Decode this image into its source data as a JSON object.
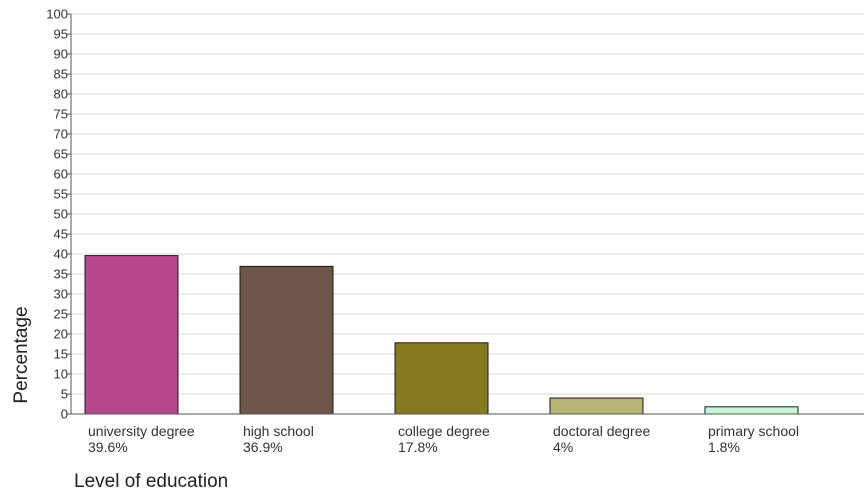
{
  "chart_data": {
    "type": "bar",
    "title": "",
    "xlabel": "Level of education",
    "ylabel": "Percentage",
    "ylim": [
      0,
      100
    ],
    "ytick_step": 5,
    "grid": true,
    "categories": [
      "university degree",
      "high school",
      "college degree",
      "doctoral degree",
      "primary school"
    ],
    "values": [
      39.6,
      36.9,
      17.8,
      4,
      1.8
    ],
    "value_labels": [
      "39.6%",
      "36.9%",
      "17.8%",
      "4%",
      "1.8%"
    ],
    "colors": [
      "#b5478a",
      "#6e564b",
      "#857a1f",
      "#b8b475",
      "#c6f5d3"
    ]
  }
}
